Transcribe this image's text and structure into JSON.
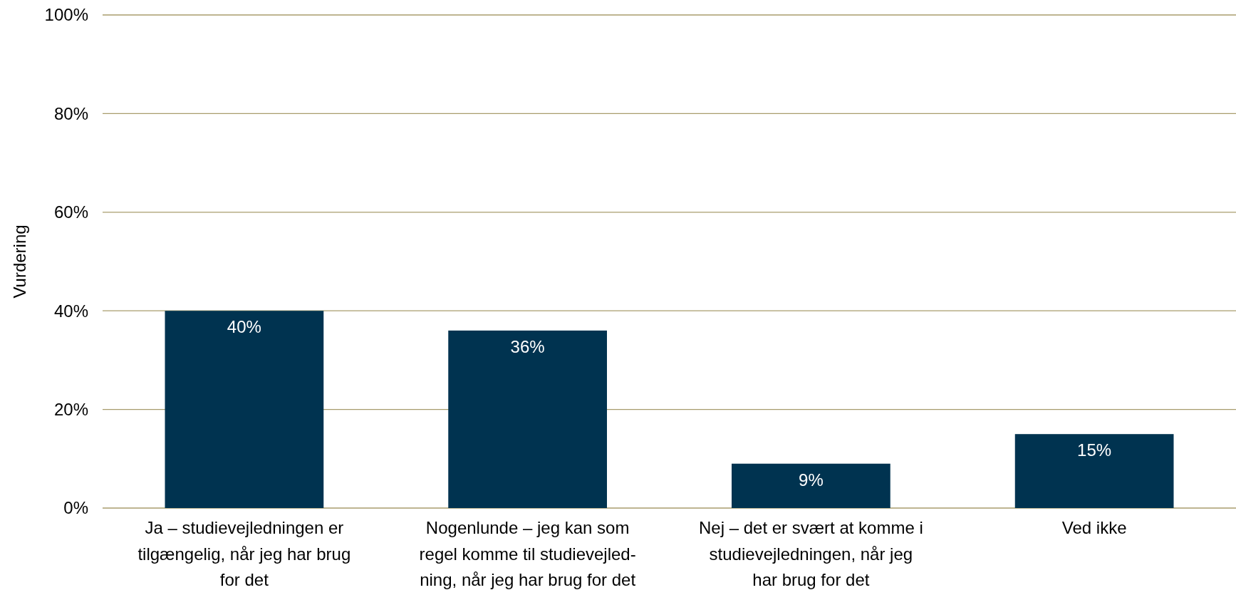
{
  "chart_data": {
    "type": "bar",
    "ylabel": "Vurdering",
    "categories": [
      "Ja – studievejledningen er\ntilgængelig, når jeg har brug\nfor det",
      "Nogenlunde – jeg kan som\nregel komme til studievejled-\nning, når jeg har brug for det",
      "Nej – det er svært at komme i\nstudievejledningen, når jeg\nhar brug for det",
      "Ved ikke"
    ],
    "values": [
      40,
      36,
      9,
      15
    ],
    "value_labels": [
      "40%",
      "36%",
      "9%",
      "15%"
    ],
    "color": "#003350",
    "ylim": [
      0,
      100
    ],
    "yticks": [
      {
        "value": 0,
        "label": "0%"
      },
      {
        "value": 20,
        "label": "20%"
      },
      {
        "value": 40,
        "label": "40%"
      },
      {
        "value": 60,
        "label": "60%"
      },
      {
        "value": 80,
        "label": "80%"
      },
      {
        "value": 100,
        "label": "100%"
      }
    ],
    "grid": "y"
  }
}
